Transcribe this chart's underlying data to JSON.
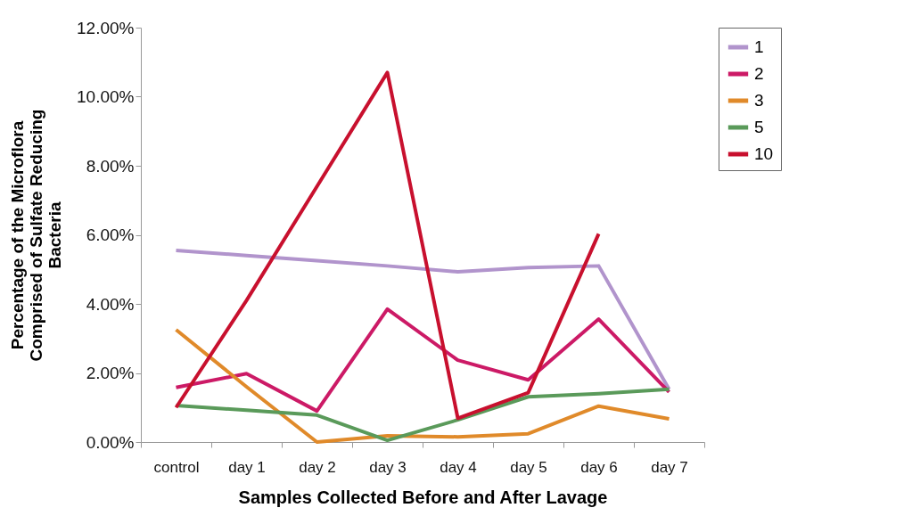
{
  "chart_data": {
    "type": "line",
    "xlabel": "Samples Collected Before and After Lavage",
    "ylabel": "Percentage of the Microflora Comprised of Sulfate Reducing Bacteria",
    "categories": [
      "control",
      "day 1",
      "day 2",
      "day 3",
      "day 4",
      "day 5",
      "day 6",
      "day 7"
    ],
    "series": [
      {
        "name": "1",
        "color": "#b194cc",
        "values": [
          5.55,
          5.4,
          5.25,
          5.1,
          4.93,
          5.05,
          5.1,
          1.53
        ]
      },
      {
        "name": "2",
        "color": "#cc1a66",
        "values": [
          1.58,
          1.98,
          0.9,
          3.85,
          2.37,
          1.8,
          3.56,
          1.45
        ]
      },
      {
        "name": "3",
        "color": "#e08a2a",
        "values": [
          3.25,
          1.6,
          0,
          0.18,
          0.15,
          0.24,
          1.04,
          0.67
        ]
      },
      {
        "name": "5",
        "color": "#5a9a5a",
        "values": [
          1.06,
          0.92,
          0.78,
          0.05,
          0.64,
          1.31,
          1.4,
          1.53
        ]
      },
      {
        "name": "10",
        "color": "#c8102e",
        "values": [
          1.0,
          4.1,
          7.4,
          10.7,
          0.69,
          1.43,
          6.03,
          null
        ]
      }
    ],
    "ylim": [
      0,
      12
    ],
    "yticks": [
      {
        "value": 0,
        "label": "0.00%"
      },
      {
        "value": 2,
        "label": "2.00%"
      },
      {
        "value": 4,
        "label": "4.00%"
      },
      {
        "value": 6,
        "label": "6.00%"
      },
      {
        "value": 8,
        "label": "8.00%"
      },
      {
        "value": 10,
        "label": "10.00%"
      },
      {
        "value": 12,
        "label": "12.00%"
      }
    ],
    "grid": false,
    "legend": "right",
    "marker": "none",
    "line_style": "solid"
  }
}
